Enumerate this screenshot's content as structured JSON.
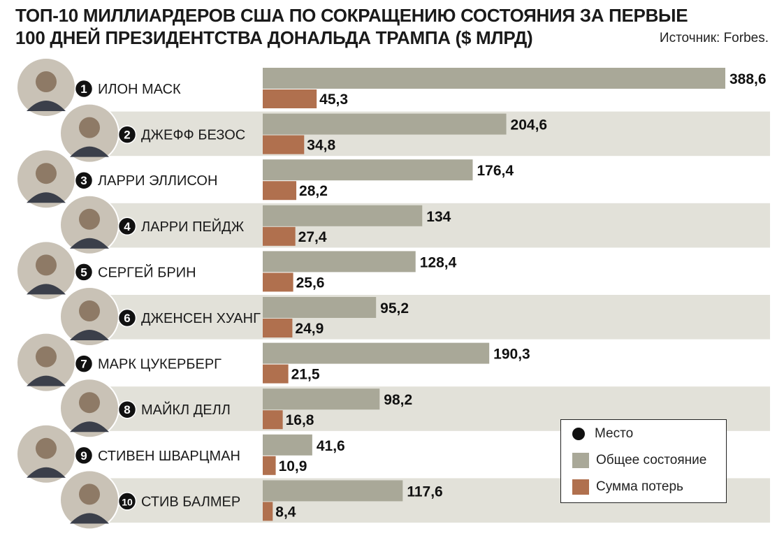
{
  "title": {
    "line1": "ТОП-10 МИЛЛИАРДЕРОВ США ПО СОКРАЩЕНИЮ СОСТОЯНИЯ ЗА ПЕРВЫЕ",
    "line2": "100 ДНЕЙ ПРЕЗИДЕНТСТВА ДОНАЛЬДА ТРАМПА ($ МЛРД)"
  },
  "source": "Источник: Forbes.",
  "legend": {
    "rank": "Место",
    "total": "Общее состояние",
    "loss": "Сумма потерь"
  },
  "colors": {
    "total_bar": "#a9a898",
    "loss_bar": "#b0704e",
    "row_band": "#e2e1d9",
    "rank_circle": "#111111"
  },
  "chart_data": {
    "type": "bar",
    "orientation": "horizontal",
    "title": "ТОП-10 МИЛЛИАРДЕРОВ США ПО СОКРАЩЕНИЮ СОСТОЯНИЯ ЗА ПЕРВЫЕ 100 ДНЕЙ ПРЕЗИДЕНТСТВА ДОНАЛЬДА ТРАМПА ($ МЛРД)",
    "categories": [
      "ИЛОН МАСК",
      "ДЖЕФФ БЕЗОС",
      "ЛАРРИ ЭЛЛИСОН",
      "ЛАРРИ ПЕЙДЖ",
      "СЕРГЕЙ БРИН",
      "ДЖЕНСЕН ХУАНГ",
      "МАРК ЦУКЕРБЕРГ",
      "МАЙКЛ ДЕЛЛ",
      "СТИВЕН ШВАРЦМАН",
      "СТИВ БАЛМЕР"
    ],
    "ranks": [
      "1",
      "2",
      "3",
      "4",
      "5",
      "6",
      "7",
      "8",
      "9",
      "10"
    ],
    "series": [
      {
        "name": "Общее состояние",
        "values": [
          388.6,
          204.6,
          176.4,
          134,
          128.4,
          95.2,
          190.3,
          98.2,
          41.6,
          117.6
        ],
        "labels": [
          "388,6",
          "204,6",
          "176,4",
          "134",
          "128,4",
          "95,2",
          "190,3",
          "98,2",
          "41,6",
          "117,6"
        ]
      },
      {
        "name": "Сумма потерь",
        "values": [
          45.3,
          34.8,
          28.2,
          27.4,
          25.6,
          24.9,
          21.5,
          16.8,
          10.9,
          8.4
        ],
        "labels": [
          "45,3",
          "34,8",
          "28,2",
          "27,4",
          "25,6",
          "24,9",
          "21,5",
          "16,8",
          "10,9",
          "8,4"
        ]
      }
    ],
    "xlim": [
      0,
      388.6
    ],
    "grid": false,
    "legend_position": "bottom-right",
    "avatar_icons": [
      "person-photo-icon",
      "person-photo-icon",
      "person-photo-icon",
      "person-photo-icon",
      "person-photo-icon",
      "person-photo-icon",
      "person-photo-icon",
      "person-photo-icon",
      "person-photo-icon",
      "person-photo-icon"
    ]
  }
}
